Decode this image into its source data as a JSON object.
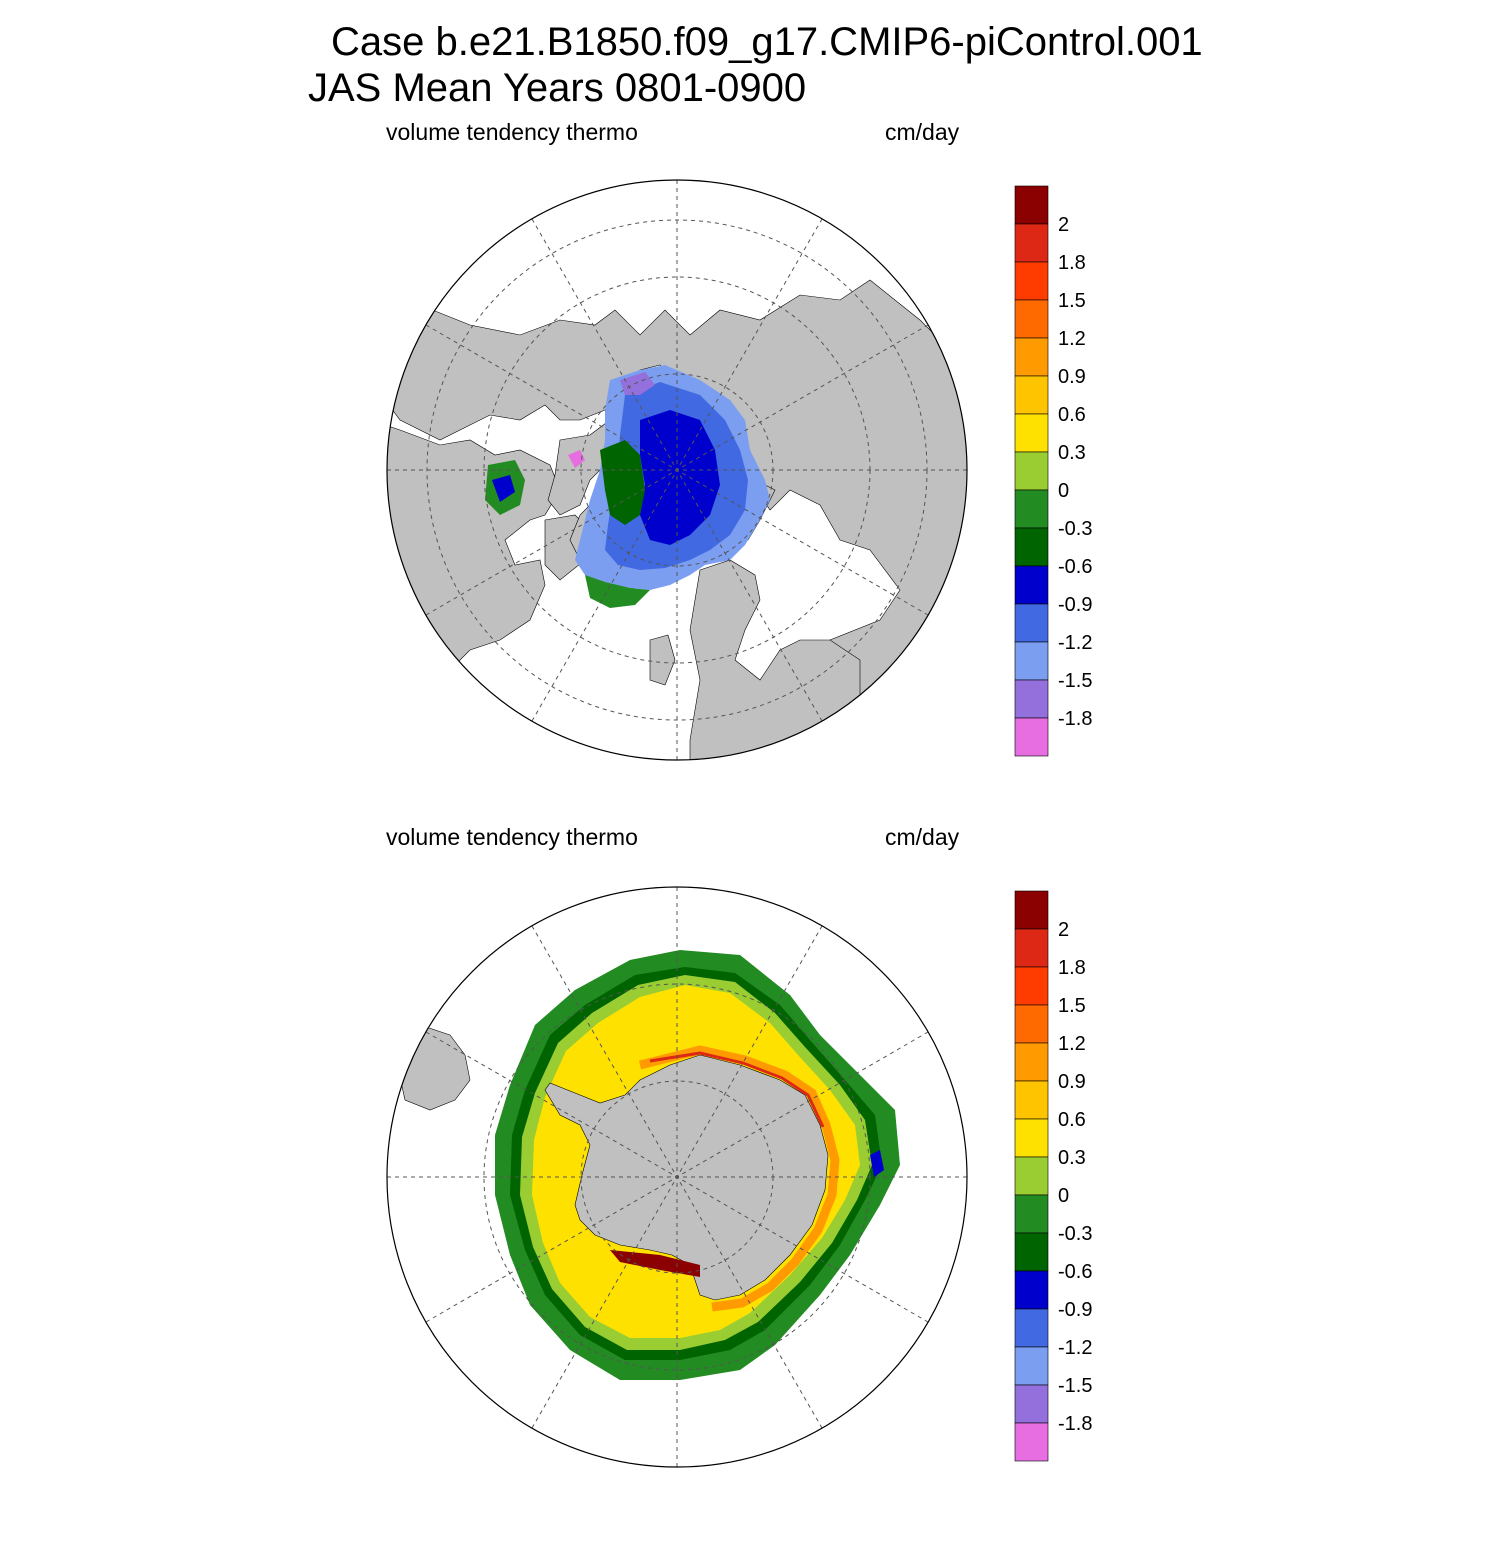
{
  "header": {
    "title_line1": "Case b.e21.B1850.f09_g17.CMIP6-piControl.001",
    "title_line2": "JAS Mean   Years 0801-0900"
  },
  "colors": {
    "land": "#c0c0c0",
    "ocean_no_ice": "#ffffff",
    "levels": [
      "#e66ee0",
      "#9370db",
      "#7b9ef0",
      "#4169e1",
      "#0000cd",
      "#006400",
      "#228b22",
      "#9acd32",
      "#ffe100",
      "#ffc400",
      "#ff9b00",
      "#ff6a00",
      "#ff3c00",
      "#dc2814",
      "#8b0000"
    ]
  },
  "chart_data": [
    {
      "type": "heatmap",
      "projection": "north polar stereographic",
      "left_label": "volume tendency thermo",
      "right_label": "cm/day",
      "colorbar": {
        "ticks": [
          "2",
          "1.8",
          "1.5",
          "1.2",
          "0.9",
          "0.6",
          "0.3",
          "0",
          "-0.3",
          "-0.6",
          "-0.9",
          "-1.2",
          "-1.5",
          "-1.8"
        ],
        "levels": [
          -1.8,
          -1.5,
          -1.2,
          -0.9,
          -0.6,
          -0.3,
          0,
          0.3,
          0.6,
          0.9,
          1.2,
          1.5,
          1.8,
          2
        ],
        "n_colors": 15
      }
    },
    {
      "type": "heatmap",
      "projection": "south polar stereographic",
      "left_label": "volume tendency thermo",
      "right_label": "cm/day",
      "colorbar": {
        "ticks": [
          "2",
          "1.8",
          "1.5",
          "1.2",
          "0.9",
          "0.6",
          "0.3",
          "0",
          "-0.3",
          "-0.6",
          "-0.9",
          "-1.2",
          "-1.5",
          "-1.8"
        ],
        "levels": [
          -1.8,
          -1.5,
          -1.2,
          -0.9,
          -0.6,
          -0.3,
          0,
          0.3,
          0.6,
          0.9,
          1.2,
          1.5,
          1.8,
          2
        ],
        "n_colors": 15
      }
    }
  ]
}
